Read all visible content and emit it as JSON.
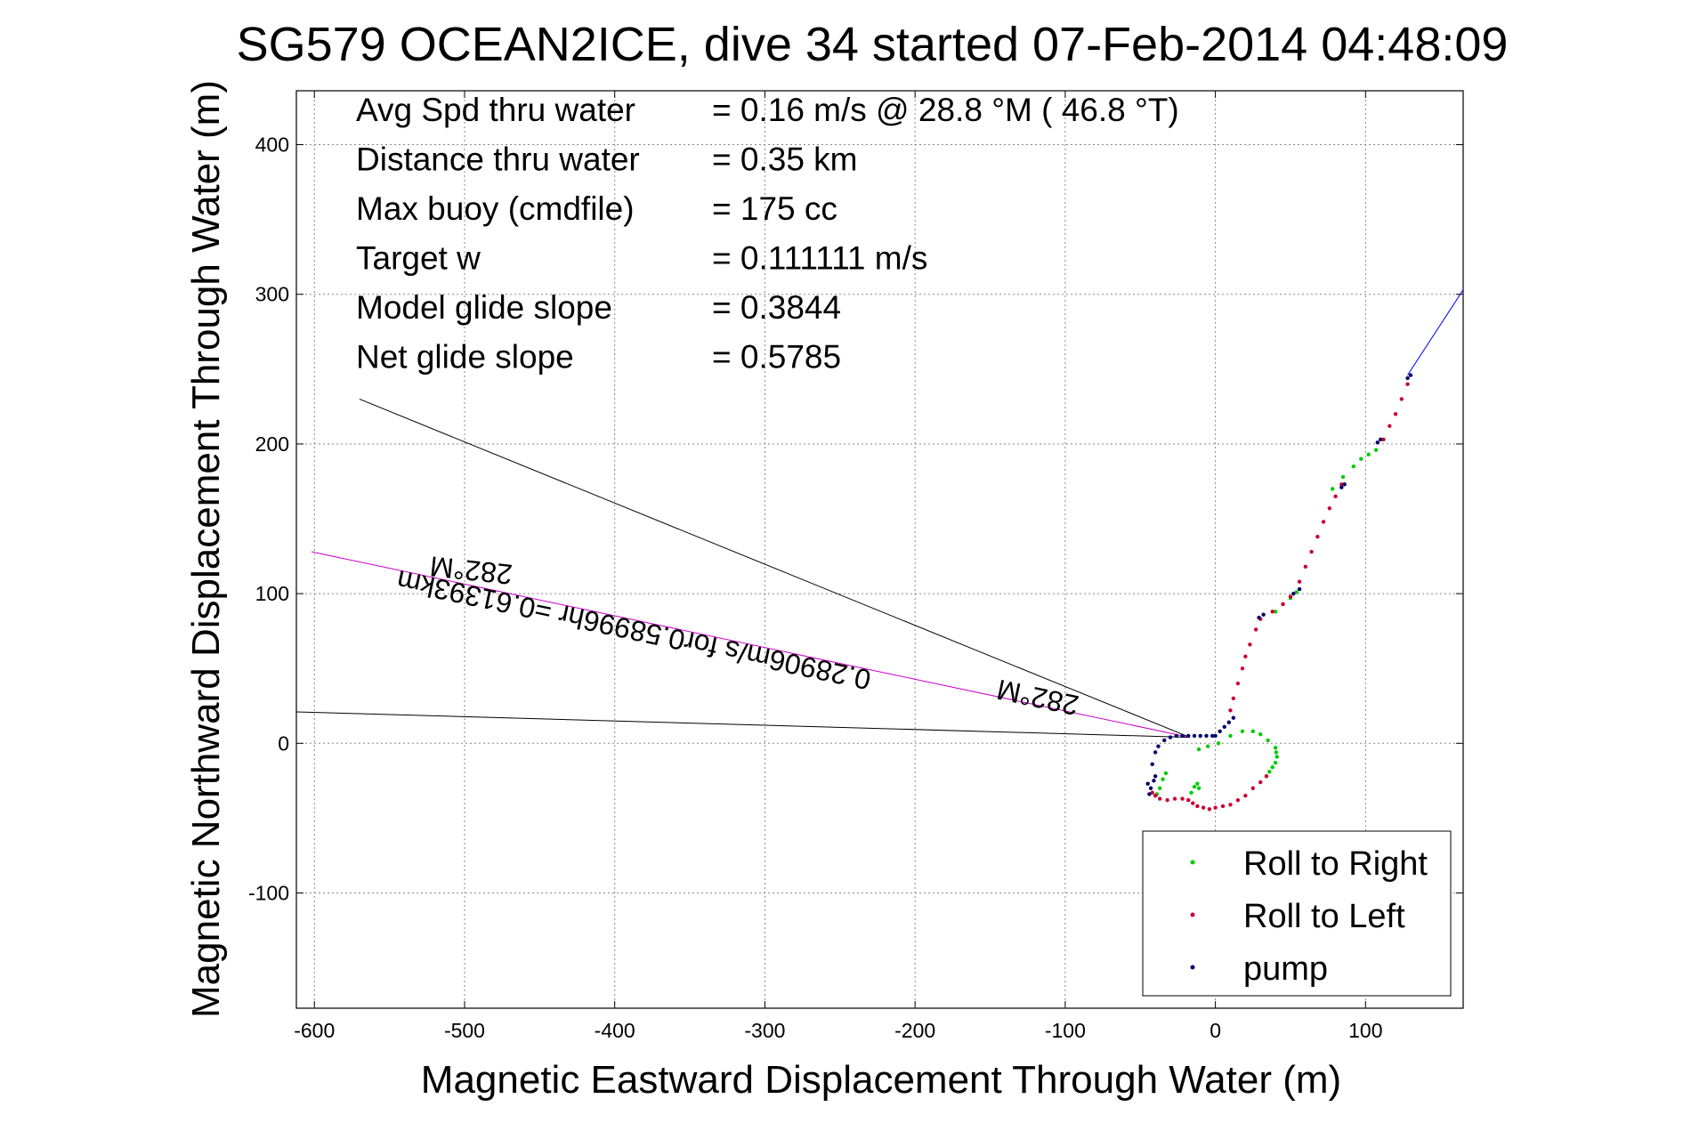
{
  "chart_data": {
    "type": "scatter",
    "title": "SG579 OCEAN2ICE, dive 34 started 07-Feb-2014 04:48:09",
    "xlabel": "Magnetic Eastward Displacement Through Water (m)",
    "ylabel": "Magnetic Northward Displacement Through Water (m)",
    "xlim": [
      -612,
      165
    ],
    "ylim": [
      -177,
      436
    ],
    "xticks": [
      -600,
      -500,
      -400,
      -300,
      -200,
      -100,
      0,
      100
    ],
    "yticks": [
      -100,
      0,
      100,
      200,
      300,
      400
    ],
    "grid": true,
    "legend_position": "bottom-right",
    "stats": [
      {
        "label": "Avg Spd thru water",
        "value": "=  0.16 m/s @  28.8 °M ( 46.8 °T)"
      },
      {
        "label": "Distance thru water",
        "value": "=  0.35 km"
      },
      {
        "label": "Max buoy (cmdfile)",
        "value": "= 175 cc"
      },
      {
        "label": "Target w",
        "value": "= 0.111111 m/s"
      },
      {
        "label": "Model glide slope",
        "value": "= 0.3844"
      },
      {
        "label": "Net glide slope",
        "value": "= 0.5785"
      }
    ],
    "series": [
      {
        "name": "Roll to Right",
        "color": "#00cc00",
        "x": [
          -11,
          -5,
          2,
          10,
          18,
          25,
          30,
          35,
          40,
          40.5,
          41,
          40,
          38,
          36,
          34,
          -39,
          -37,
          -35,
          -33,
          -16,
          -14,
          -12,
          -11,
          78,
          85,
          92,
          97,
          102,
          107,
          40,
          45,
          50,
          54
        ],
        "y": [
          -4,
          -2,
          0,
          5,
          8,
          8,
          6,
          2,
          -3,
          -6,
          -9,
          -13,
          -16,
          -19,
          -22,
          -34,
          -30,
          -24,
          -20,
          -33,
          -29,
          -27,
          -30,
          170,
          178,
          185,
          190,
          193,
          196,
          88,
          93,
          97,
          101
        ]
      },
      {
        "name": "Roll to Left",
        "color": "#cc0033",
        "x": [
          34,
          30,
          25,
          20,
          15,
          10,
          5,
          0,
          -4,
          -8,
          -12,
          -15,
          -18,
          -22,
          -27,
          -32,
          -37,
          -40,
          -42,
          10,
          12,
          15,
          18,
          20,
          23,
          27,
          30,
          38,
          45,
          50,
          56,
          60,
          64,
          68,
          72,
          76,
          80,
          84,
          112,
          116,
          120,
          124,
          128
        ],
        "y": [
          -22,
          -26,
          -30,
          -35,
          -38,
          -41,
          -42,
          -43,
          -44,
          -43,
          -42,
          -40,
          -38,
          -37,
          -37,
          -38,
          -37,
          -35,
          -33,
          22,
          30,
          40,
          50,
          58,
          66,
          76,
          83,
          88,
          93,
          98,
          108,
          118,
          128,
          138,
          148,
          157,
          165,
          173,
          203,
          212,
          220,
          230,
          240
        ]
      },
      {
        "name": "pump",
        "color": "#000066",
        "x": [
          -44,
          -45,
          -42,
          -40,
          -38,
          -34,
          -30,
          -26,
          -22,
          -18,
          -14,
          -10,
          -6,
          -2,
          0,
          3,
          6,
          9,
          12,
          -43,
          -41,
          -40,
          29,
          32,
          52,
          56,
          84,
          86,
          108,
          110,
          128,
          130
        ],
        "y": [
          -34,
          -27,
          -14,
          -6,
          -2,
          2,
          4,
          5,
          5,
          5,
          5,
          5,
          5,
          5,
          5,
          8,
          11,
          14,
          17,
          -30,
          -25,
          -22,
          84,
          86,
          100,
          103,
          171,
          173,
          201,
          203,
          244,
          246
        ]
      }
    ],
    "lines": [
      {
        "name": "current-line-upper",
        "color": "#000000",
        "x": [
          -570,
          -17
        ],
        "y": [
          230,
          4
        ]
      },
      {
        "name": "current-line-lower",
        "color": "#000000",
        "x": [
          -612,
          -17
        ],
        "y": [
          21,
          4
        ]
      },
      {
        "name": "current-line-mean",
        "color": "#cc00cc",
        "x": [
          -602,
          -17
        ],
        "y": [
          128,
          4
        ]
      },
      {
        "name": "track-extension",
        "color": "#0000ff",
        "x": [
          128,
          165
        ],
        "y": [
          246,
          303
        ]
      }
    ],
    "annotations": [
      {
        "text": "282°M",
        "x": -495,
        "y": 122,
        "rotate": 186
      },
      {
        "text": "0.28906m/s for0.58996hr =0.61393km",
        "x": -386,
        "y": 82,
        "rotate": 192
      },
      {
        "text": "282°M",
        "x": -117,
        "y": 37,
        "rotate": 192
      }
    ]
  }
}
